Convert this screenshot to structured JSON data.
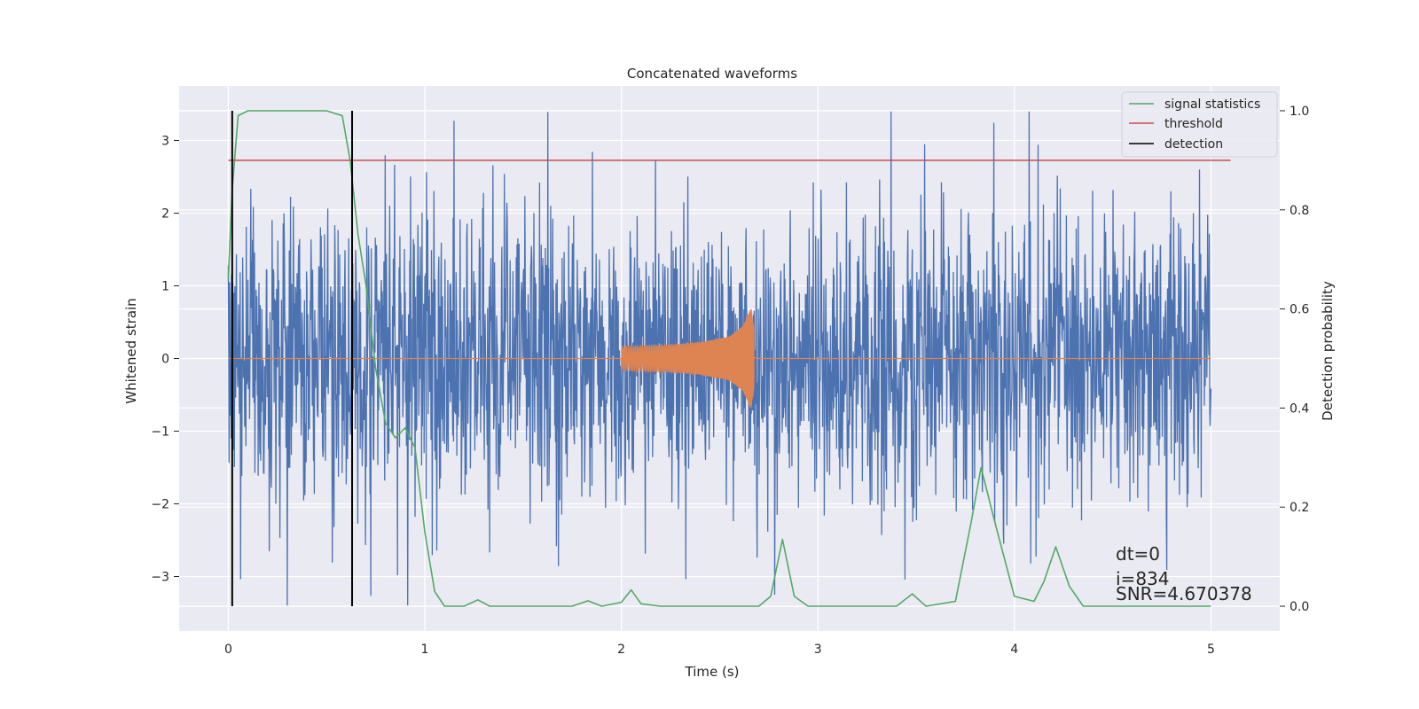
{
  "chart_data": {
    "type": "line",
    "title": "Concatenated waveforms",
    "xlabel": "Time (s)",
    "ylabel": "Whitened strain",
    "y2label": "Detection probability",
    "xlim": [
      -0.25,
      5.35
    ],
    "ylim": [
      -3.75,
      3.75
    ],
    "y2lim": [
      -0.05,
      1.05
    ],
    "xticks": [
      0,
      1,
      2,
      3,
      4,
      5
    ],
    "yticks": [
      -3,
      -2,
      -1,
      0,
      1,
      2,
      3
    ],
    "y2ticks": [
      0.0,
      0.2,
      0.4,
      0.6,
      0.8,
      1.0
    ],
    "y2ticklabels": [
      "0.0",
      "0.2",
      "0.4",
      "0.6",
      "0.8",
      "1.0"
    ],
    "grid": true,
    "legend_position": "top-right",
    "legend": [
      "signal statistics",
      "threshold",
      "detection"
    ],
    "colors": {
      "noise": "#4c72b0",
      "template": "#dd8452",
      "signal_statistics": "#55a868",
      "threshold": "#c44e52",
      "detection": "#000000",
      "axes_background": "#eaeaf2",
      "grid": "#ffffff"
    },
    "series": [
      {
        "role": "whitened strain (noise + injection)",
        "axis": "left",
        "x_range": [
          0,
          5
        ],
        "y_range": [
          -3.4,
          3.4
        ]
      },
      {
        "role": "injected waveform",
        "axis": "left",
        "x": [
          2.0,
          2.2,
          2.4,
          2.55,
          2.62,
          2.66,
          2.68,
          2.7,
          5.0
        ],
        "amplitude": [
          0.16,
          0.18,
          0.22,
          0.3,
          0.45,
          0.7,
          0.3,
          0.0,
          0.0
        ]
      },
      {
        "name": "signal statistics",
        "axis": "right",
        "x": [
          0,
          0.02,
          0.05,
          0.1,
          0.5,
          0.58,
          0.62,
          0.66,
          0.7,
          0.75,
          0.8,
          0.85,
          0.9,
          0.95,
          1.0,
          1.05,
          1.1,
          1.2,
          1.27,
          1.33,
          1.5,
          1.75,
          1.83,
          1.9,
          2.0,
          2.05,
          2.1,
          2.2,
          2.5,
          2.7,
          2.76,
          2.82,
          2.88,
          2.95,
          3.2,
          3.4,
          3.48,
          3.55,
          3.7,
          3.78,
          3.83,
          3.9,
          4.0,
          4.1,
          4.15,
          4.21,
          4.28,
          4.35,
          4.5,
          5.0
        ],
        "y": [
          0.66,
          0.84,
          0.99,
          1.0,
          1.0,
          0.99,
          0.9,
          0.75,
          0.65,
          0.48,
          0.37,
          0.34,
          0.36,
          0.32,
          0.15,
          0.03,
          0.0,
          0.0,
          0.013,
          0.0,
          0.0,
          0.0,
          0.011,
          0.0,
          0.008,
          0.033,
          0.005,
          0.0,
          0.0,
          0.0,
          0.02,
          0.135,
          0.02,
          0.0,
          0.0,
          0.0,
          0.025,
          0.0,
          0.01,
          0.17,
          0.28,
          0.17,
          0.02,
          0.01,
          0.05,
          0.12,
          0.04,
          0.0,
          0.0,
          0.0
        ]
      },
      {
        "name": "threshold",
        "axis": "right",
        "x": [
          0,
          5.1
        ],
        "y": [
          0.9,
          0.9
        ]
      },
      {
        "name": "detection",
        "axis": "right",
        "x": [
          0.02,
          0.63
        ],
        "ymin": 0.0,
        "ymax": 1.0
      }
    ],
    "annotations": [
      "dt=0",
      "i=834",
      "SNR=4.670378"
    ]
  }
}
